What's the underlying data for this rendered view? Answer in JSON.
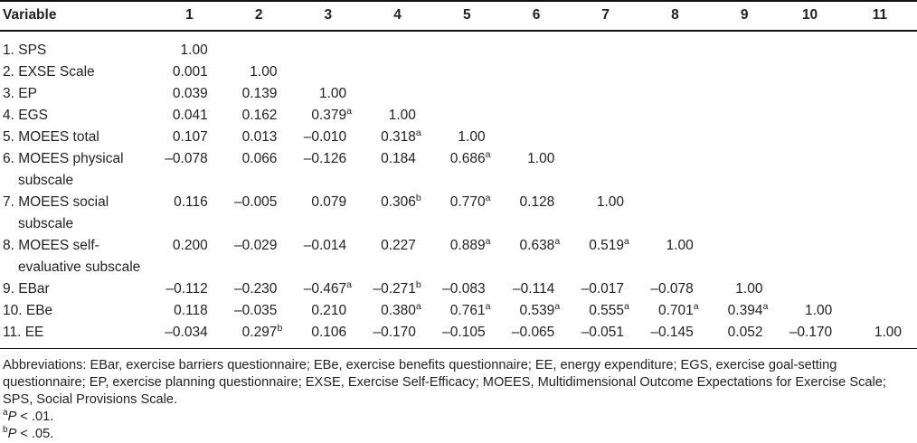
{
  "table": {
    "header_label": "Variable",
    "col_headers": [
      "1",
      "2",
      "3",
      "4",
      "5",
      "6",
      "7",
      "8",
      "9",
      "10",
      "11"
    ],
    "rows": [
      {
        "label": "1. SPS",
        "label2": "",
        "values": [
          "1.00"
        ]
      },
      {
        "label": "2. EXSE Scale",
        "label2": "",
        "values": [
          "0.001",
          "1.00"
        ]
      },
      {
        "label": "3. EP",
        "label2": "",
        "values": [
          "0.039",
          "0.139",
          "1.00"
        ]
      },
      {
        "label": "4. EGS",
        "label2": "",
        "values": [
          "0.041",
          "0.162",
          "0.379^a",
          "1.00"
        ]
      },
      {
        "label": "5. MOEES total",
        "label2": "",
        "values": [
          "0.107",
          "0.013",
          "–0.010",
          "0.318^a",
          "1.00"
        ]
      },
      {
        "label": "6. MOEES physical",
        "label2": "subscale",
        "values": [
          "–0.078",
          "0.066",
          "–0.126",
          "0.184",
          "0.686^a",
          "1.00"
        ]
      },
      {
        "label": "7. MOEES social",
        "label2": "subscale",
        "values": [
          "0.116",
          "–0.005",
          "0.079",
          "0.306^b",
          "0.770^a",
          "0.128",
          "1.00"
        ]
      },
      {
        "label": "8. MOEES self-",
        "label2": "evaluative subscale",
        "values": [
          "0.200",
          "–0.029",
          "–0.014",
          "0.227",
          "0.889^a",
          "0.638^a",
          "0.519^a",
          "1.00"
        ]
      },
      {
        "label": "9. EBar",
        "label2": "",
        "values": [
          "–0.112",
          "–0.230",
          "–0.467^a",
          "–0.271^b",
          "–0.083",
          "–0.114",
          "–0.017",
          "–0.078",
          "1.00"
        ]
      },
      {
        "label": "10. EBe",
        "label2": "",
        "values": [
          "0.118",
          "–0.035",
          "0.210",
          "0.380^a",
          "0.761^a",
          "0.539^a",
          "0.555^a",
          "0.701^a",
          "0.394^a",
          "1.00"
        ]
      },
      {
        "label": "11. EE",
        "label2": "",
        "values": [
          "–0.034",
          "0.297^b",
          "0.106",
          "–0.170",
          "–0.105",
          "–0.065",
          "–0.051",
          "–0.145",
          "0.052",
          "–0.170",
          "1.00"
        ]
      }
    ]
  },
  "footnotes": {
    "abbreviations": "Abbreviations: EBar, exercise barriers questionnaire; EBe, exercise benefits questionnaire; EE, energy expenditure; EGS, exercise goal-setting questionnaire; EP, exercise planning questionnaire; EXSE, Exercise Self-Efficacy; MOEES, Multidimensional Outcome Expectations for Exercise Scale; SPS, Social Provisions Scale.",
    "note_a": {
      "sup": "a",
      "p": "P",
      "rest": " < .01."
    },
    "note_b": {
      "sup": "b",
      "p": "P",
      "rest": " < .05."
    }
  }
}
